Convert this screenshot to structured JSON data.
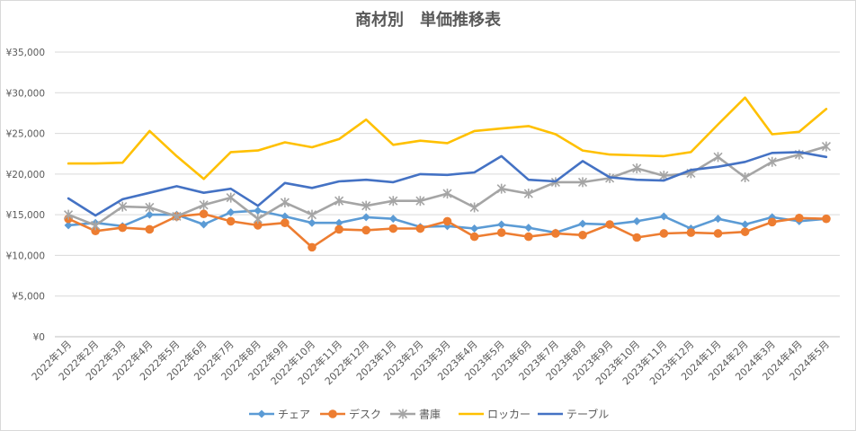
{
  "chart_data": {
    "type": "line",
    "title": "商材別　単価推移表",
    "xlabel": "",
    "ylabel": "",
    "ylim": [
      0,
      35000
    ],
    "yticks": [
      0,
      5000,
      10000,
      15000,
      20000,
      25000,
      30000,
      35000
    ],
    "ytick_labels": [
      "¥0",
      "¥5,000",
      "¥10,000",
      "¥15,000",
      "¥20,000",
      "¥25,000",
      "¥30,000",
      "¥35,000"
    ],
    "grid": true,
    "legend_position": "bottom",
    "categories": [
      "2022年1月",
      "2022年2月",
      "2022年3月",
      "2022年4月",
      "2022年5月",
      "2022年6月",
      "2022年7月",
      "2022年8月",
      "2022年9月",
      "2022年10月",
      "2022年11月",
      "2022年12月",
      "2023年1月",
      "2023年2月",
      "2023年3月",
      "2023年4月",
      "2023年5月",
      "2023年6月",
      "2023年7月",
      "2023年8月",
      "2023年9月",
      "2023年10月",
      "2023年11月",
      "2023年12月",
      "2024年1月",
      "2024年2月",
      "2024年3月",
      "2024年4月",
      "2024年5月"
    ],
    "series": [
      {
        "name": "チェア",
        "color": "#5B9BD5",
        "marker": "diamond",
        "values": [
          13700,
          14000,
          13600,
          15000,
          15000,
          13800,
          15300,
          15500,
          14800,
          14000,
          14000,
          14700,
          14500,
          13500,
          13600,
          13300,
          13800,
          13400,
          12800,
          13900,
          13800,
          14200,
          14800,
          13300,
          14500,
          13800,
          14700,
          14200,
          14500
        ]
      },
      {
        "name": "デスク",
        "color": "#ED7D31",
        "marker": "circle",
        "values": [
          14500,
          13000,
          13400,
          13200,
          14800,
          15100,
          14200,
          13700,
          14000,
          11000,
          13200,
          13100,
          13300,
          13300,
          14200,
          12300,
          12800,
          12300,
          12700,
          12500,
          13800,
          12200,
          12700,
          12800,
          12700,
          12900,
          14100,
          14600,
          14500
        ]
      },
      {
        "name": "書庫",
        "color": "#A5A5A5",
        "marker": "star",
        "values": [
          15000,
          13700,
          16000,
          15900,
          14800,
          16200,
          17100,
          14500,
          16500,
          15000,
          16700,
          16100,
          16700,
          16700,
          17600,
          15900,
          18200,
          17600,
          19000,
          19000,
          19500,
          20700,
          19800,
          20100,
          22100,
          19600,
          21500,
          22400,
          23400
        ]
      },
      {
        "name": "ロッカー",
        "color": "#FFC000",
        "marker": "none",
        "values": [
          21300,
          21300,
          21400,
          25300,
          22200,
          19400,
          22700,
          22900,
          23900,
          23300,
          24300,
          26700,
          23600,
          24100,
          23800,
          25300,
          25600,
          25900,
          24900,
          22900,
          22400,
          22300,
          22200,
          22700,
          26100,
          29400,
          24900,
          25200,
          28000
        ]
      },
      {
        "name": "テーブル",
        "color": "#4472C4",
        "marker": "none",
        "values": [
          17000,
          14900,
          16900,
          17700,
          18500,
          17700,
          18200,
          16100,
          18900,
          18300,
          19100,
          19300,
          19000,
          20000,
          19900,
          20200,
          22200,
          19300,
          19100,
          21600,
          19600,
          19300,
          19200,
          20500,
          20900,
          21500,
          22600,
          22700,
          22100
        ]
      }
    ]
  }
}
